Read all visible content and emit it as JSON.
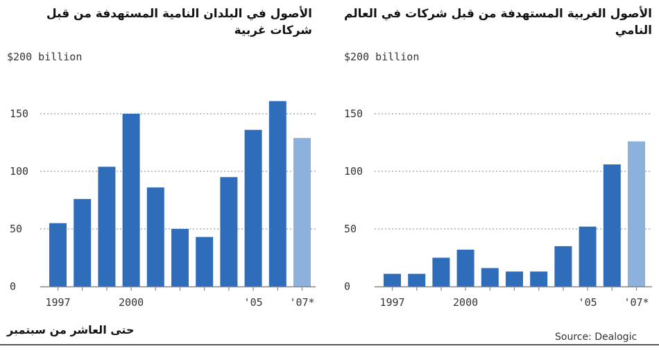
{
  "colors": {
    "bar": "#2f6dbb",
    "bar_highlight": "#8cb1dc",
    "grid": "#9a9a9a",
    "axis": "#888888"
  },
  "footnote": "حتى العاشر من سبتمبر",
  "source": "Source: Dealogic",
  "chart_data": [
    {
      "type": "bar",
      "title": "الأصول في البلدان النامية المستهدفة من قبل شركات غربية",
      "unit_label": "$200 billion",
      "categories": [
        "1997",
        "1998",
        "1999",
        "2000",
        "2001",
        "2002",
        "2003",
        "2004",
        "2005",
        "2006",
        "2007"
      ],
      "values": [
        55,
        76,
        104,
        150,
        86,
        50,
        43,
        95,
        136,
        161,
        129
      ],
      "highlight_last": true,
      "ylim": [
        0,
        200
      ],
      "y_ticks": [
        0,
        50,
        100,
        150
      ],
      "x_tick_labels": [
        {
          "index": 0,
          "label": "1997"
        },
        {
          "index": 3,
          "label": "2000"
        },
        {
          "index": 8,
          "label": "'05"
        },
        {
          "index": 10,
          "label": "'07*"
        }
      ],
      "grid": true
    },
    {
      "type": "bar",
      "title": "الأصول الغربية المستهدفة من قبل شركات في العالم النامي",
      "unit_label": "$200 billion",
      "categories": [
        "1997",
        "1998",
        "1999",
        "2000",
        "2001",
        "2002",
        "2003",
        "2004",
        "2005",
        "2006",
        "2007"
      ],
      "values": [
        11,
        11,
        25,
        32,
        16,
        13,
        13,
        35,
        52,
        106,
        126
      ],
      "highlight_last": true,
      "ylim": [
        0,
        200
      ],
      "y_ticks": [
        0,
        50,
        100,
        150
      ],
      "x_tick_labels": [
        {
          "index": 0,
          "label": "1997"
        },
        {
          "index": 3,
          "label": "2000"
        },
        {
          "index": 8,
          "label": "'05"
        },
        {
          "index": 10,
          "label": "'07*"
        }
      ],
      "grid": true
    }
  ]
}
